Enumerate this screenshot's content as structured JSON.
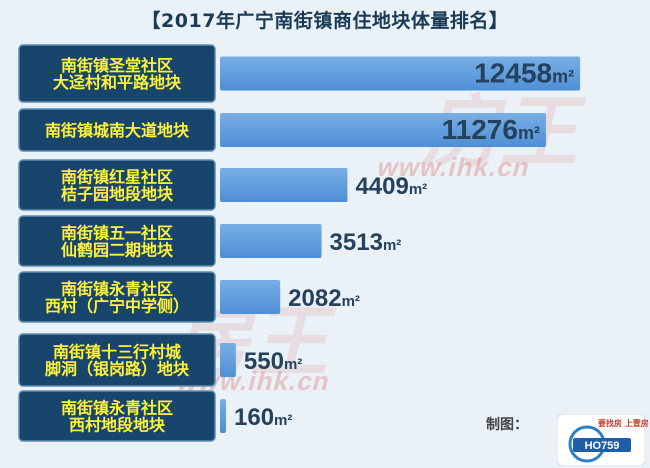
{
  "title": "【2017年广宁南街镇商住地块体量排名】",
  "chart_data": {
    "type": "bar",
    "orientation": "horizontal",
    "unit": "m²",
    "categories": [
      [
        "南街镇圣堂社区",
        "大迳村和平路地块"
      ],
      [
        "南街镇城南大道地块"
      ],
      [
        "南街镇红星社区",
        "桔子园地段地块"
      ],
      [
        "南街镇五一社区",
        "仙鹤园二期地块"
      ],
      [
        "南街镇永青社区",
        "西村（广宁中学侧）"
      ],
      [
        "南街镇十三行村城",
        "脚洞（银岗路）地块"
      ],
      [
        "南街镇永青社区",
        "西村地段地块"
      ]
    ],
    "values": [
      12458,
      11276,
      4409,
      3513,
      2082,
      550,
      160
    ],
    "xlim": [
      0,
      12800
    ],
    "colors": {
      "bar": "#4f8fd4",
      "bar_top": "#78aee6",
      "label_bg": "#17456b",
      "label_text": "#fff23a",
      "value_text": "#24425e"
    }
  },
  "footer": {
    "label": "制图：",
    "brand_text": "要找房 上壹房"
  },
  "watermarks": [
    "www.ihk.cn",
    "www.ihk.cn"
  ]
}
